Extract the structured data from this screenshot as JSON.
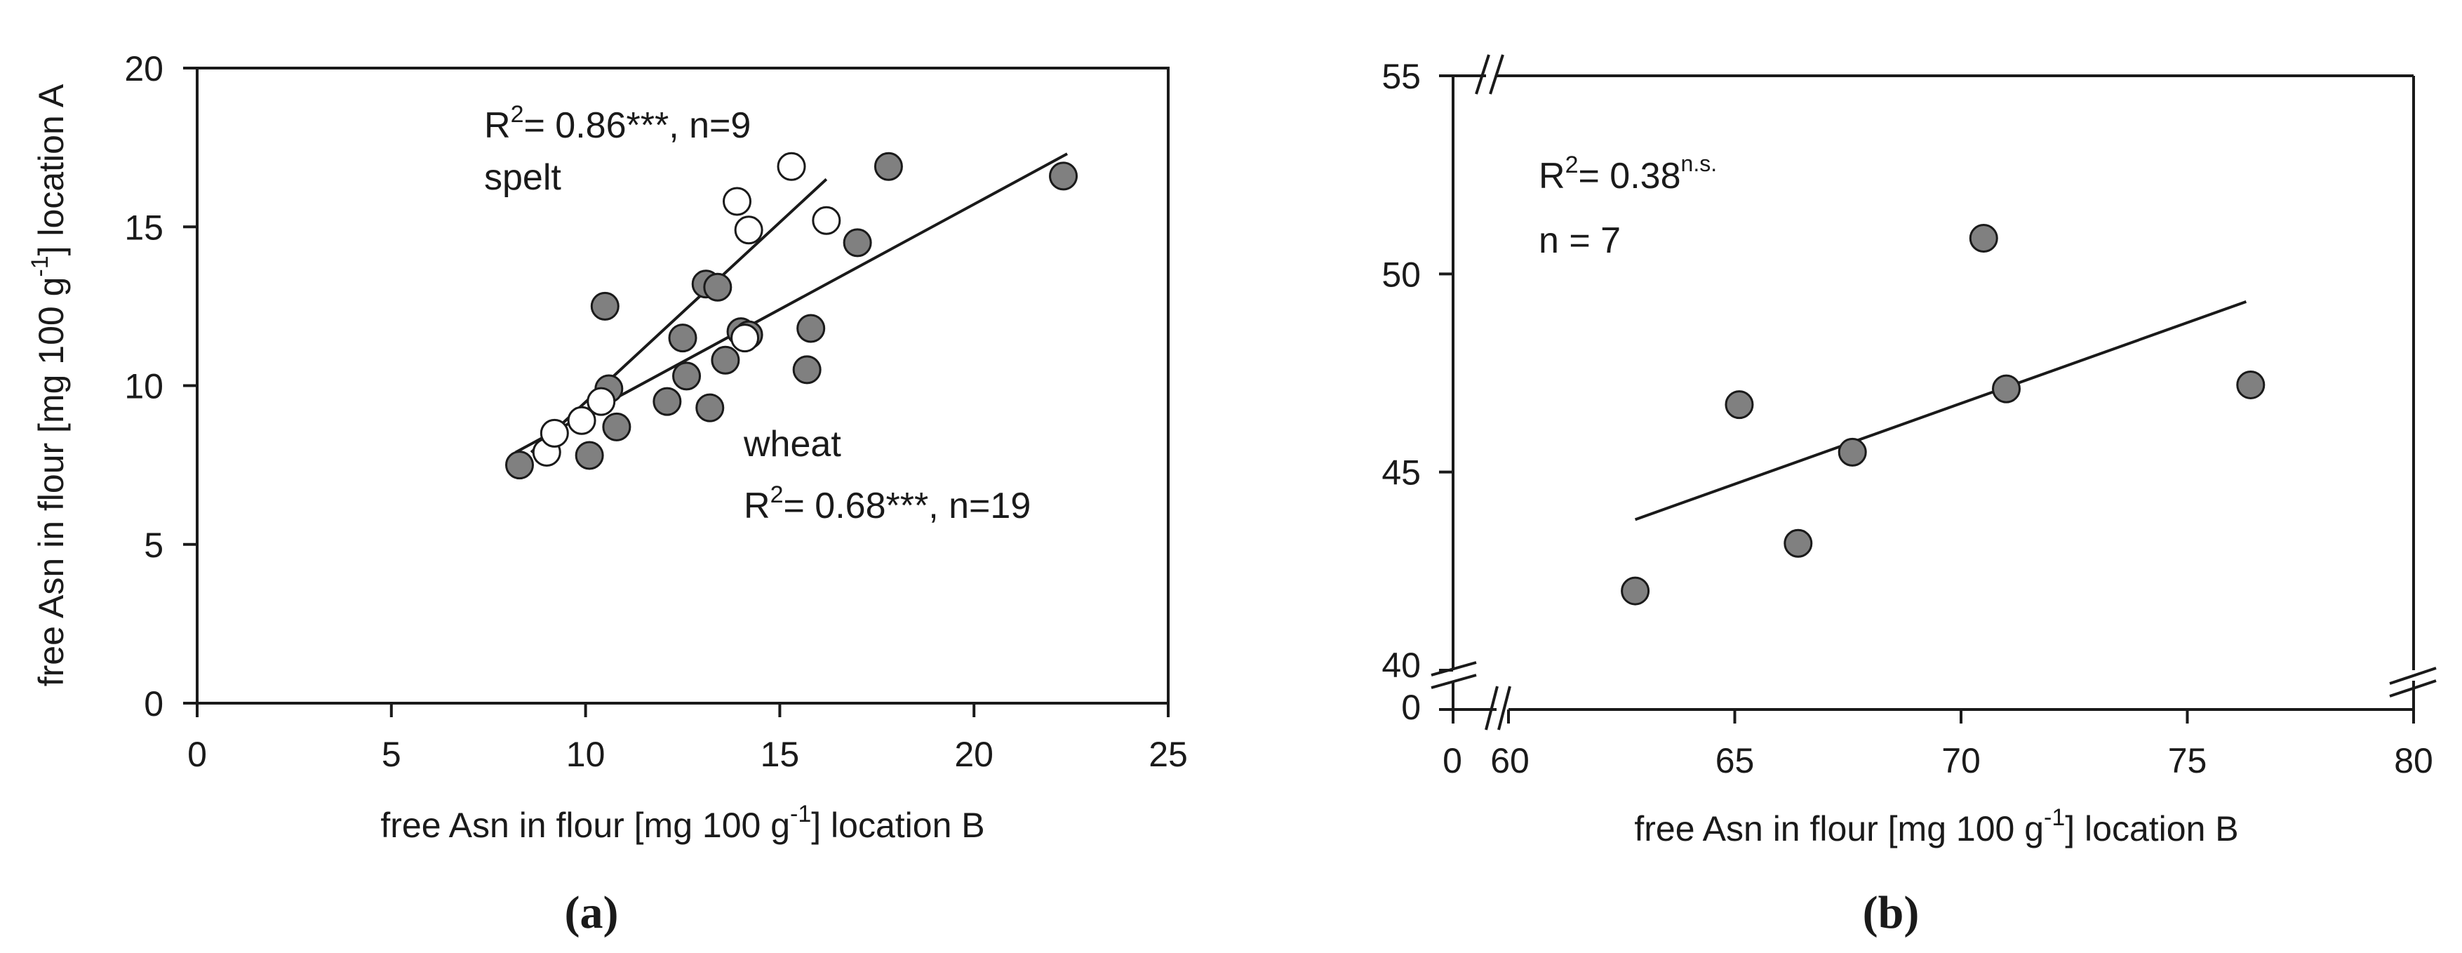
{
  "panels": [
    {
      "label": "(a)",
      "xlabel": "free Asn in flour [mg 100 g",
      "xlabel_sup": "-1",
      "xlabel_end": "] location B",
      "ylabel": "free Asn in flour [mg 100 g",
      "ylabel_sup": "-1",
      "ylabel_end": "] location A",
      "annotations": {
        "spelt_r2_pre": "R",
        "spelt_r2_sup": "2",
        "spelt_r2_post": "= 0.86***, n=9",
        "spelt_name": "spelt",
        "wheat_name": "wheat",
        "wheat_r2_pre": "R",
        "wheat_r2_sup": "2",
        "wheat_r2_post": "= 0.68***, n=19"
      }
    },
    {
      "label": "(b)",
      "xlabel": "free Asn in flour [mg 100 g",
      "xlabel_sup": "-1",
      "xlabel_end": "] location B",
      "annotations": {
        "r2_pre": "R",
        "r2_sup": "2",
        "r2_post": "= 0.38",
        "r2_sig": "n.s.",
        "n_text": "n = 7"
      }
    }
  ],
  "chart_data": [
    {
      "type": "scatter",
      "xlim": [
        0,
        25
      ],
      "ylim": [
        0,
        20
      ],
      "x_ticks": [
        "0",
        "5",
        "10",
        "15",
        "20",
        "25"
      ],
      "y_ticks": [
        "0",
        "5",
        "10",
        "15",
        "20"
      ],
      "grid": false,
      "series": [
        {
          "name": "wheat",
          "marker": "filled-circle",
          "color": "#808080",
          "points": [
            [
              8.3,
              7.5
            ],
            [
              10.1,
              7.8
            ],
            [
              10.8,
              8.7
            ],
            [
              12.1,
              9.5
            ],
            [
              13.2,
              9.3
            ],
            [
              12.6,
              10.3
            ],
            [
              10.6,
              9.9
            ],
            [
              10.5,
              12.5
            ],
            [
              12.5,
              11.5
            ],
            [
              13.6,
              10.8
            ],
            [
              14.0,
              11.7
            ],
            [
              13.1,
              13.2
            ],
            [
              13.4,
              13.1
            ],
            [
              15.7,
              10.5
            ],
            [
              15.8,
              11.8
            ],
            [
              17.0,
              14.5
            ],
            [
              17.8,
              16.9
            ],
            [
              22.3,
              16.6
            ],
            [
              14.2,
              11.6
            ]
          ],
          "fit": {
            "x": [
              8.2,
              22.4
            ],
            "y": [
              7.9,
              17.3
            ]
          }
        },
        {
          "name": "spelt",
          "marker": "open-circle",
          "color": "#ffffff",
          "points": [
            [
              9.0,
              7.9
            ],
            [
              9.2,
              8.5
            ],
            [
              9.9,
              8.9
            ],
            [
              10.4,
              9.5
            ],
            [
              14.1,
              11.5
            ],
            [
              13.9,
              15.8
            ],
            [
              14.2,
              14.9
            ],
            [
              15.3,
              16.9
            ],
            [
              16.2,
              15.2
            ]
          ],
          "fit": {
            "x": [
              8.6,
              16.2
            ],
            "y": [
              7.9,
              16.5
            ]
          }
        }
      ]
    },
    {
      "type": "scatter",
      "x_axis_break": true,
      "y_axis_break": true,
      "xlim": [
        60,
        80
      ],
      "ylim": [
        40,
        55
      ],
      "x_ticks": [
        "0",
        "60",
        "65",
        "70",
        "75",
        "80"
      ],
      "y_ticks": [
        "0",
        "40",
        "45",
        "50",
        "55"
      ],
      "grid": false,
      "series": [
        {
          "marker": "filled-circle",
          "color": "#808080",
          "points": [
            [
              62.8,
              42.0
            ],
            [
              65.1,
              46.7
            ],
            [
              66.4,
              43.2
            ],
            [
              67.6,
              45.5
            ],
            [
              70.5,
              50.9
            ],
            [
              71.0,
              47.1
            ],
            [
              76.4,
              47.2
            ]
          ],
          "fit": {
            "x": [
              62.8,
              76.3
            ],
            "y": [
              43.8,
              49.3
            ]
          }
        }
      ]
    }
  ]
}
